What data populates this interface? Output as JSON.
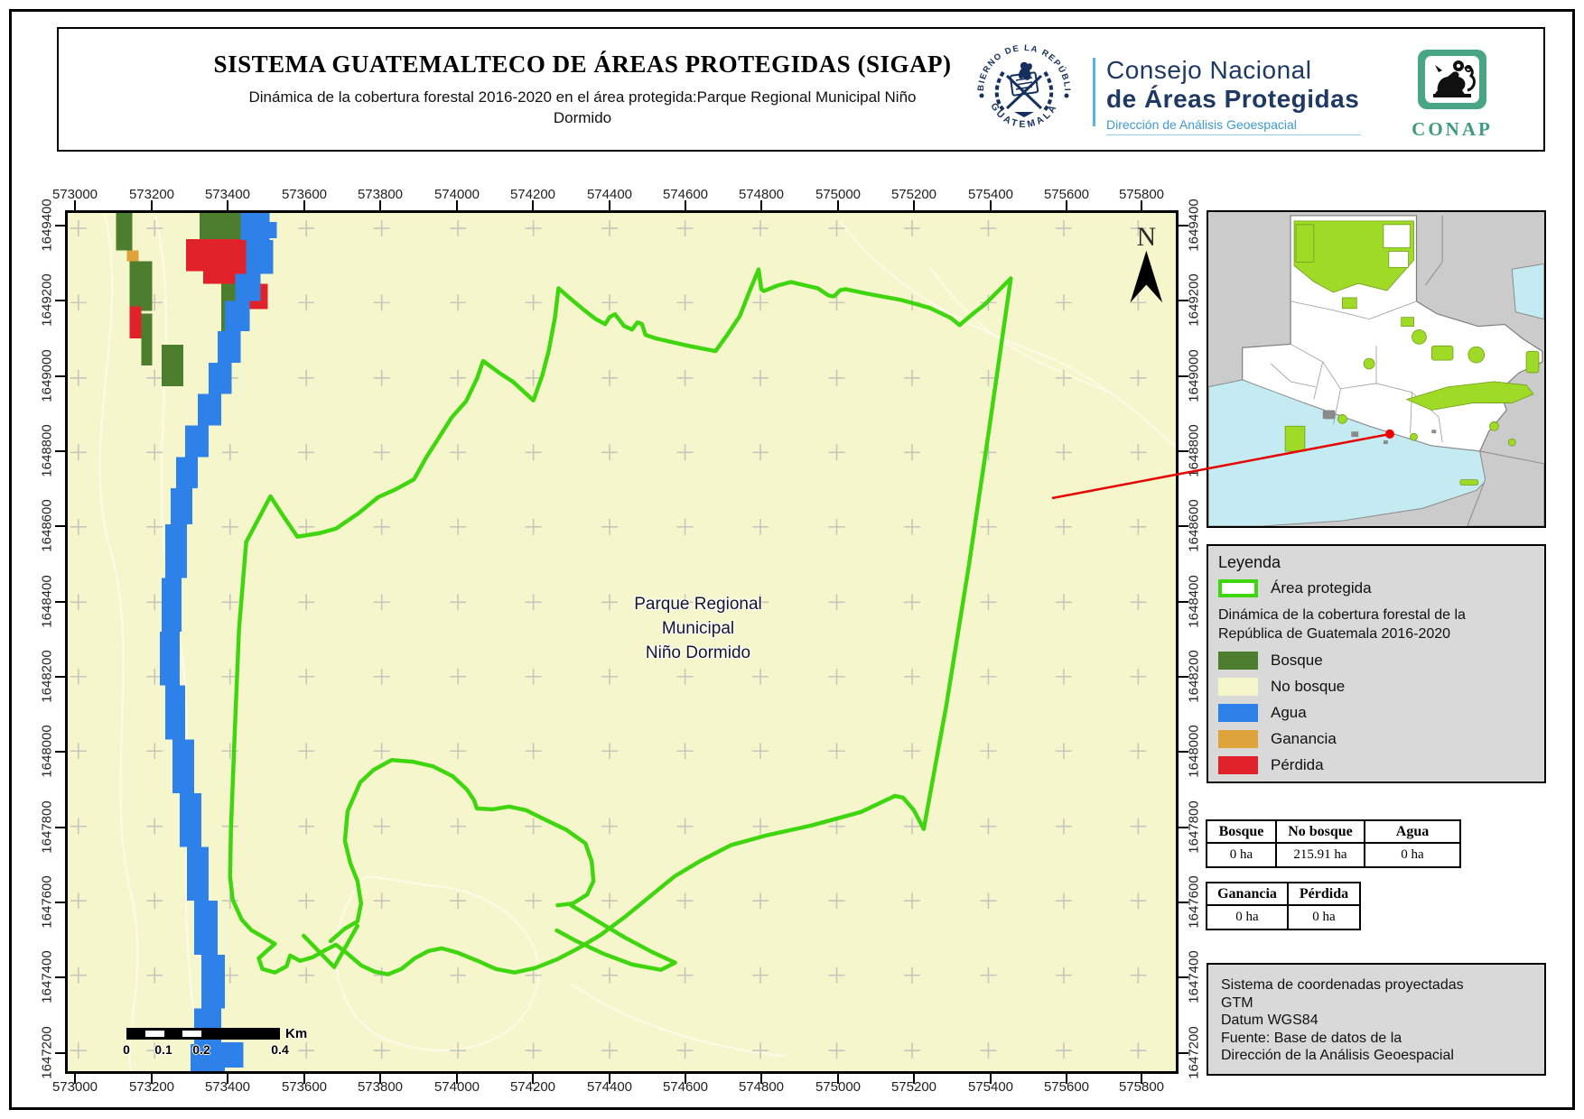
{
  "header": {
    "title": "SISTEMA GUATEMALTECO DE ÁREAS PROTEGIDAS  (SIGAP)",
    "subtitle_line1": "Dinámica de la cobertura forestal 2016-2020 en el área protegida:Parque Regional Municipal Niño",
    "subtitle_line2": "Dormido",
    "seal_text_top": "GOBIERNO DE LA REPÚBLICA",
    "seal_text_bottom": "GUATEMALA",
    "org_line1": "Consejo Nacional",
    "org_line2": "de Áreas Protegidas",
    "org_line3": "Dirección de Análisis Geoespacial",
    "conap_label": "CONAP"
  },
  "map": {
    "x_ticks": [
      "573000",
      "573200",
      "573400",
      "573600",
      "573800",
      "574000",
      "574200",
      "574400",
      "574600",
      "574800",
      "575000",
      "575200",
      "575400",
      "575600",
      "575800"
    ],
    "y_ticks": [
      "1649400",
      "1649200",
      "1649000",
      "1648800",
      "1648600",
      "1648400",
      "1648200",
      "1648000",
      "1647800",
      "1647600",
      "1647400",
      "1647200"
    ],
    "area_label_lines": [
      "Parque Regional",
      "Municipal",
      "Niño Dormido"
    ],
    "north_label": "N",
    "scalebar": {
      "labels": [
        "0",
        "0.1",
        "0.2",
        "0.4"
      ],
      "unit": "Km"
    }
  },
  "legend": {
    "title": "Leyenda",
    "area_protegida_label": "Área protegida",
    "subtitle_line1": "Dinámica de la cobertura forestal de la",
    "subtitle_line2": "República de Guatemala 2016-2020",
    "items": [
      {
        "label": "Bosque",
        "color": "#4c7e2d"
      },
      {
        "label": "No bosque",
        "color": "#f6f6cc"
      },
      {
        "label": "Agua",
        "color": "#2e81e8"
      },
      {
        "label": "Ganancia",
        "color": "#dfa33c"
      },
      {
        "label": "Pérdida",
        "color": "#e1222a"
      }
    ]
  },
  "tables": {
    "coverage": {
      "headers": [
        "Bosque",
        "No bosque",
        "Agua"
      ],
      "values": [
        "0 ha",
        "215.91 ha",
        "0 ha"
      ]
    },
    "change": {
      "headers": [
        "Ganancia",
        "Pérdida"
      ],
      "values": [
        "0 ha",
        "0 ha"
      ]
    }
  },
  "info_box": {
    "lines": [
      "Sistema de coordenadas proyectadas",
      "GTM",
      "Datum WGS84",
      "Fuente: Base de datos de la",
      "Dirección de la Análisis Geoespacial"
    ]
  },
  "colors": {
    "no_bosque_bg": "#f6f6cc",
    "bosque": "#4c7e2d",
    "agua": "#2e81e8",
    "ganancia": "#dfa33c",
    "perdida": "#e1222a",
    "area_protegida_outline": "#3fd60f",
    "inset_protected": "#9fdb26",
    "panel_gray": "#d9d9d9",
    "callout_red": "#e60000",
    "org_navy": "#1e3a64",
    "org_lightblue": "#3e9ad2",
    "conap_green": "#3e9c7e"
  }
}
